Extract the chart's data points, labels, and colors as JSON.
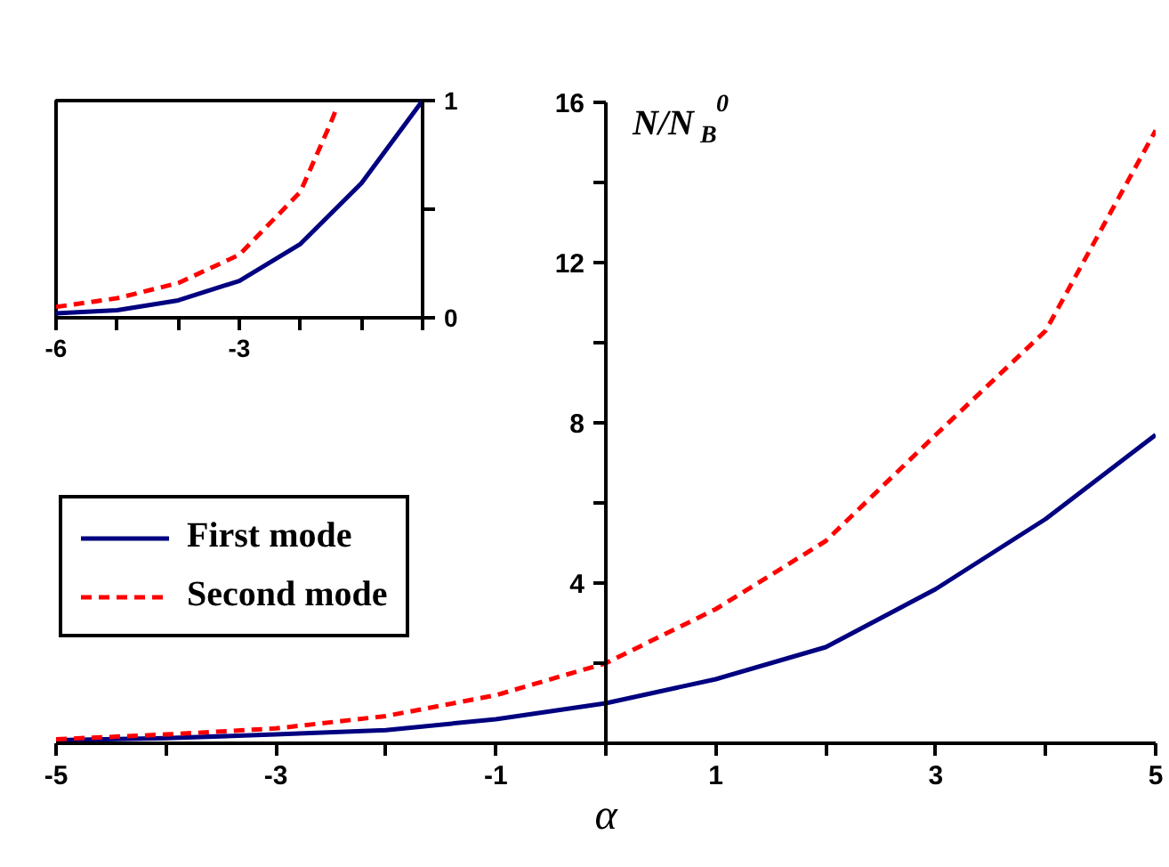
{
  "chart_data": [
    {
      "type": "line",
      "xlabel": "α",
      "ylabel": "N/N$_{B}$$^{0}$",
      "xlim": [
        -5,
        5
      ],
      "ylim": [
        0,
        16
      ],
      "xticks": [
        -5,
        {
          "value": -4,
          "label": null
        },
        -3,
        {
          "value": -2,
          "label": null
        },
        -1,
        {
          "value": 0,
          "label": null
        },
        1,
        {
          "value": 2,
          "label": null
        },
        3,
        {
          "value": 4,
          "label": null
        },
        5
      ],
      "yticks": [
        {
          "value": 2,
          "label": null
        },
        4,
        {
          "value": 6,
          "label": null
        },
        8,
        {
          "value": 10,
          "label": null
        },
        12,
        {
          "value": 14,
          "label": null
        },
        16
      ],
      "grid": false,
      "legend": "left",
      "series": [
        {
          "name": "First mode",
          "color": "#000080",
          "line_style": "solid",
          "x": [
            -5,
            -4,
            -3,
            -2,
            -1,
            0,
            1,
            2,
            3,
            4,
            5
          ],
          "values": [
            0.08,
            0.13,
            0.22,
            0.33,
            0.6,
            1.0,
            1.6,
            2.4,
            3.85,
            5.6,
            7.7
          ]
        },
        {
          "name": "Second mode",
          "color": "#ff0000",
          "line_style": "dashed",
          "x": [
            -5,
            -4,
            -3,
            -2,
            -1,
            0,
            1,
            2,
            3,
            4,
            5
          ],
          "values": [
            0.1,
            0.22,
            0.37,
            0.68,
            1.2,
            2.0,
            3.35,
            5.05,
            7.7,
            10.3,
            15.3
          ]
        }
      ]
    },
    {
      "type": "line",
      "xlim": [
        -6,
        0
      ],
      "ylim": [
        0,
        1
      ],
      "xticks": [
        -6,
        {
          "value": -5,
          "label": null
        },
        {
          "value": -4,
          "label": null
        },
        -3,
        {
          "value": -2,
          "label": null
        },
        {
          "value": -1,
          "label": null
        },
        {
          "value": 0,
          "label": null
        }
      ],
      "yticks": [
        0,
        {
          "value": 0.5,
          "label": null
        },
        1
      ],
      "grid": false,
      "series": [
        {
          "color": "#000080",
          "line_style": "solid",
          "x": [
            -6,
            -5,
            -4,
            -3,
            -2,
            -1,
            0
          ],
          "values": [
            0.02,
            0.035,
            0.08,
            0.17,
            0.34,
            0.62,
            1.0
          ]
        },
        {
          "color": "#ff0000",
          "line_style": "dashed",
          "x": [
            -6,
            -5,
            -4,
            -3,
            -2,
            -1.5,
            -1.4
          ],
          "values": [
            0.05,
            0.09,
            0.16,
            0.29,
            0.58,
            0.9,
            0.97
          ]
        }
      ]
    }
  ]
}
